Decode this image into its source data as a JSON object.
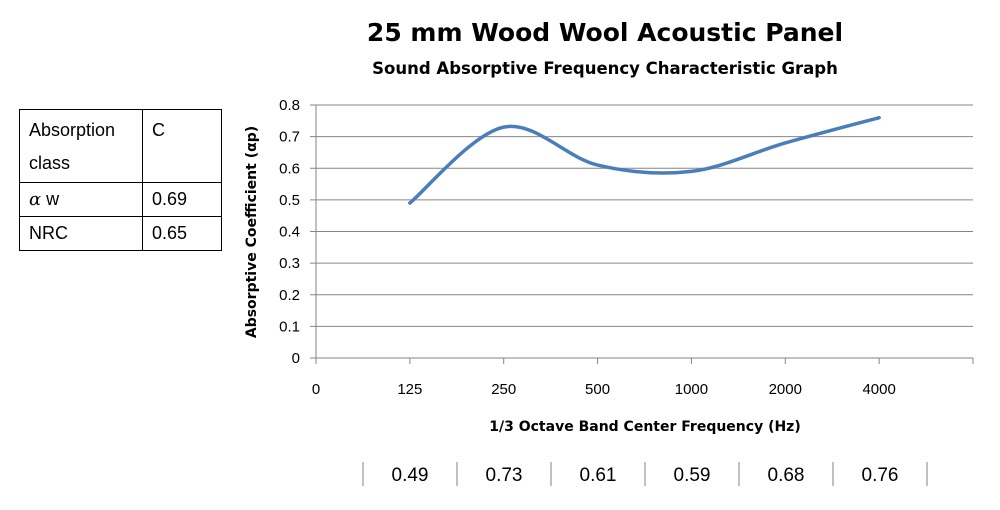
{
  "chart_data": {
    "type": "line",
    "title": "25 mm Wood Wool Acoustic Panel",
    "subtitle": "Sound Absorptive Frequency Characteristic Graph",
    "xlabel": "1/3 Octave Band Center Frequency (Hz)",
    "ylabel": "Absorptive Coefficient (αp)",
    "x_tick_labels": [
      "0",
      "125",
      "250",
      "500",
      "1000",
      "2000",
      "4000"
    ],
    "y_tick_labels": [
      "0",
      "0.1",
      "0.2",
      "0.3",
      "0.4",
      "0.5",
      "0.6",
      "0.7",
      "0.8"
    ],
    "ylim": [
      0,
      0.8
    ],
    "grid": true,
    "smooth": true,
    "line_color": "#4a7ebb",
    "categories": [
      "125",
      "250",
      "500",
      "1000",
      "2000",
      "4000"
    ],
    "values": [
      0.49,
      0.73,
      0.61,
      0.59,
      0.68,
      0.76
    ],
    "data_table": [
      "0.49",
      "0.73",
      "0.61",
      "0.59",
      "0.68",
      "0.76"
    ]
  },
  "info_table": {
    "rows": [
      {
        "label": "Absorption class",
        "value": "C"
      },
      {
        "label_symbol": "α",
        "label": "w",
        "value": "0.69"
      },
      {
        "label": "NRC",
        "value": "0.65"
      }
    ]
  }
}
